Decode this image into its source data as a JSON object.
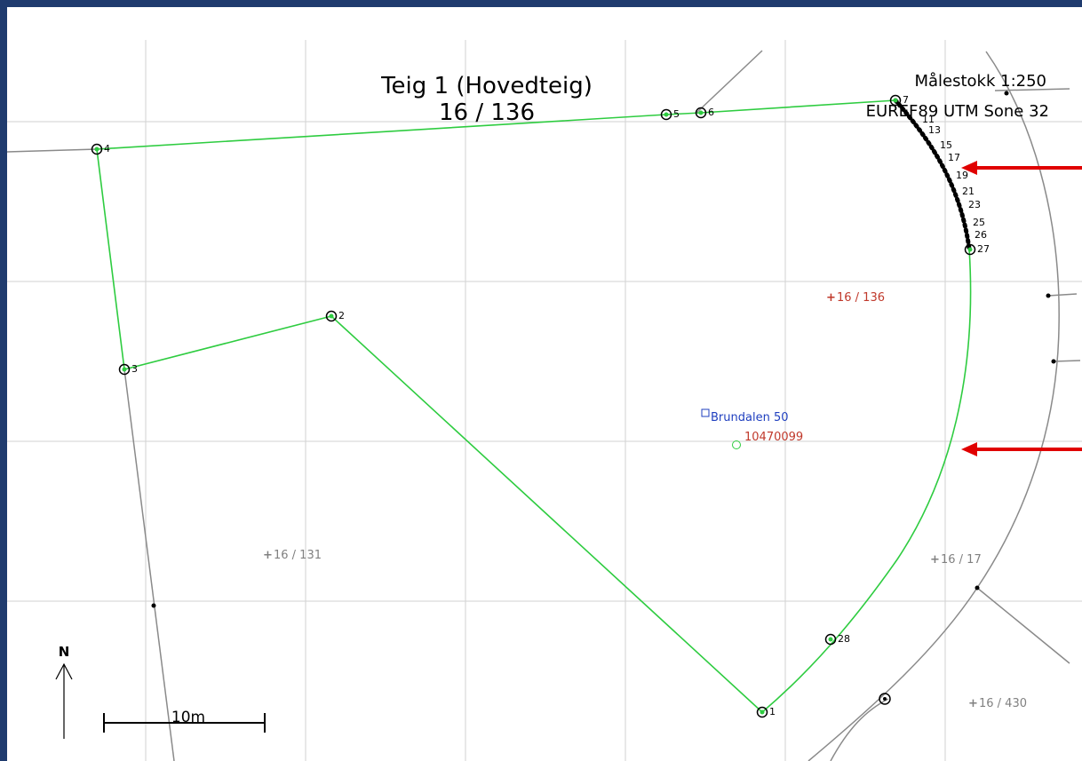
{
  "title": {
    "line1": "Teig 1 (Hovedteig)",
    "line2": "16 / 136"
  },
  "map_info": {
    "scale": "Målestokk 1:250",
    "crs": "EUREF89 UTM Sone 32"
  },
  "point_labels": [
    "1",
    "2",
    "3",
    "4",
    "5",
    "6",
    "7",
    "11",
    "13",
    "15",
    "17",
    "19",
    "21",
    "23",
    "25",
    "26",
    "27",
    "28"
  ],
  "parcels": [
    {
      "label": "16 / 136",
      "color": "#c0392b"
    },
    {
      "label": "16 / 131",
      "color": "#808080"
    },
    {
      "label": "16 / 17",
      "color": "#808080"
    },
    {
      "label": "16 / 430",
      "color": "#808080"
    }
  ],
  "address": {
    "label": "Brundalen 50",
    "color": "#1f3fbf"
  },
  "building_id": {
    "label": "10470099",
    "color": "#c0392b"
  },
  "north_label": "N",
  "scalebar_label": "10m",
  "colors": {
    "boundary": "#2ecc40",
    "neighbor": "#808080",
    "grid": "#d0d0d0",
    "arrow": "#e00000",
    "frame": "#1f3b6e"
  }
}
